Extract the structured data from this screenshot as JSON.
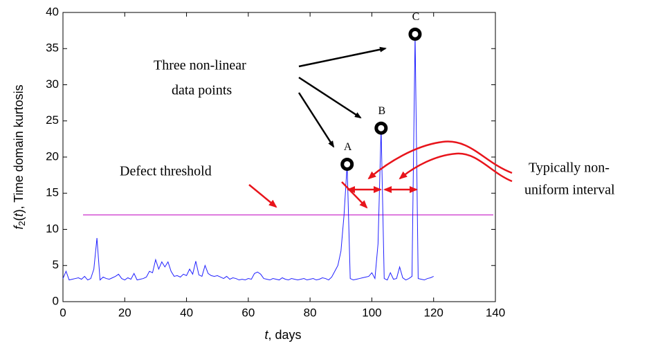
{
  "chart_data": {
    "type": "line",
    "xlabel": [
      "t",
      ", days"
    ],
    "ylabel": [
      "f",
      "2",
      "(",
      "t",
      "), Time domain kurtosis"
    ],
    "x": [
      0,
      1,
      2,
      3,
      4,
      5,
      6,
      7,
      8,
      9,
      10,
      11,
      12,
      13,
      14,
      15,
      16,
      17,
      18,
      19,
      20,
      21,
      22,
      23,
      24,
      25,
      26,
      27,
      28,
      29,
      30,
      31,
      32,
      33,
      34,
      35,
      36,
      37,
      38,
      39,
      40,
      41,
      42,
      43,
      44,
      45,
      46,
      47,
      48,
      49,
      50,
      51,
      52,
      53,
      54,
      55,
      56,
      57,
      58,
      59,
      60,
      61,
      62,
      63,
      64,
      65,
      66,
      67,
      68,
      69,
      70,
      71,
      72,
      73,
      74,
      75,
      76,
      77,
      78,
      79,
      80,
      81,
      82,
      83,
      84,
      85,
      86,
      87,
      88,
      89,
      90,
      91,
      92,
      93,
      94,
      95,
      96,
      97,
      98,
      99,
      100,
      101,
      102,
      103,
      104,
      105,
      106,
      107,
      108,
      109,
      110,
      111,
      112,
      113,
      114,
      115,
      116,
      117,
      118,
      119,
      120
    ],
    "series": [
      {
        "color": "#2020ff",
        "values": [
          3.2,
          4.2,
          3.0,
          3.1,
          3.2,
          3.3,
          3.1,
          3.5,
          3.0,
          3.2,
          4.5,
          8.8,
          3.0,
          3.4,
          3.2,
          3.1,
          3.3,
          3.5,
          3.8,
          3.2,
          3.0,
          3.3,
          3.1,
          3.9,
          3.0,
          3.1,
          3.2,
          3.4,
          4.2,
          4.0,
          5.8,
          4.5,
          5.5,
          4.8,
          5.5,
          4.2,
          3.5,
          3.6,
          3.4,
          3.8,
          3.6,
          4.5,
          3.8,
          5.6,
          3.7,
          3.5,
          5.0,
          3.9,
          3.6,
          3.5,
          3.6,
          3.4,
          3.2,
          3.5,
          3.1,
          3.3,
          3.2,
          3.0,
          3.1,
          3.0,
          3.2,
          3.1,
          3.9,
          4.1,
          3.8,
          3.2,
          3.1,
          3.0,
          3.2,
          3.1,
          3.0,
          3.3,
          3.1,
          3.0,
          3.2,
          3.1,
          3.0,
          3.1,
          3.2,
          3.0,
          3.1,
          3.2,
          3.0,
          3.1,
          3.3,
          3.2,
          3.0,
          3.4,
          4.2,
          5.0,
          7.0,
          12.0,
          19.0,
          3.2,
          3.0,
          3.1,
          3.2,
          3.3,
          3.4,
          3.5,
          4.0,
          3.2,
          8.0,
          24.0,
          3.2,
          3.0,
          4.0,
          3.1,
          3.2,
          4.8,
          3.3,
          3.0,
          3.2,
          3.5,
          37.0,
          3.2,
          3.1,
          3.0,
          3.2,
          3.3,
          3.5
        ]
      }
    ],
    "threshold": 12,
    "threshold_color": "#cc33cc",
    "threshold_label": "Defect threshold",
    "peaks": [
      {
        "index": 92,
        "label": "A"
      },
      {
        "index": 103,
        "label": "B"
      },
      {
        "index": 114,
        "label": "C"
      }
    ],
    "annotation_points": [
      "Three non-linear",
      "data points"
    ],
    "annotation_interval": [
      "Typically non-",
      "uniform interval"
    ],
    "xlim": [
      0,
      140
    ],
    "xticks": [
      0,
      20,
      40,
      60,
      80,
      100,
      120,
      140
    ],
    "ylim": [
      0,
      40
    ],
    "yticks": [
      0,
      5,
      10,
      15,
      20,
      25,
      30,
      35,
      40
    ]
  }
}
